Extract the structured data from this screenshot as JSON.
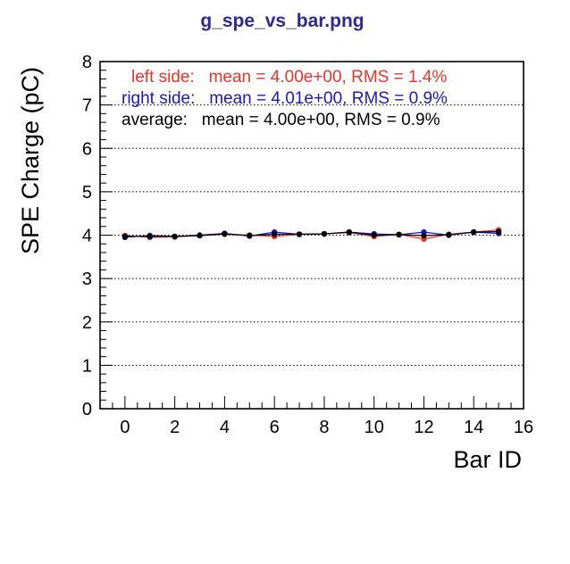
{
  "chart_data": {
    "type": "line",
    "title": "g_spe_vs_bar.png",
    "xlabel": "Bar ID",
    "ylabel": "SPE Charge (pC)",
    "xlim": [
      -1,
      16
    ],
    "ylim": [
      0,
      8
    ],
    "x_ticks": [
      "0",
      "2",
      "4",
      "6",
      "8",
      "10",
      "12",
      "14",
      "16"
    ],
    "y_ticks": [
      "0",
      "1",
      "2",
      "3",
      "4",
      "5",
      "6",
      "7",
      "8"
    ],
    "grid": "horizontal dotted",
    "legend_placement": "top",
    "x": [
      0,
      1,
      2,
      3,
      4,
      5,
      6,
      7,
      8,
      9,
      10,
      11,
      12,
      13,
      14,
      15
    ],
    "series": [
      {
        "color": "#e8342a",
        "values": [
          3.99,
          3.95,
          3.96,
          3.99,
          4.02,
          4.0,
          3.97,
          4.02,
          4.03,
          4.06,
          3.97,
          4.02,
          3.91,
          4.02,
          4.07,
          4.12
        ]
      },
      {
        "color": "#1b16c8",
        "values": [
          3.95,
          3.99,
          3.97,
          4.0,
          4.04,
          3.98,
          4.07,
          4.02,
          4.03,
          4.07,
          4.03,
          4.01,
          4.07,
          4.0,
          4.07,
          4.04
        ]
      },
      {
        "color": "#000000",
        "values": [
          3.97,
          3.97,
          3.97,
          3.99,
          4.03,
          3.99,
          4.02,
          4.02,
          4.03,
          4.07,
          4.0,
          4.01,
          3.99,
          4.01,
          4.07,
          4.08
        ]
      }
    ],
    "annotations": [
      {
        "text": "left side:   mean = 4.00e+00, RMS = 1.4%",
        "color": "#e8342a"
      },
      {
        "text": "right side:   mean = 4.01e+00, RMS = 0.9%",
        "color": "#1b16c8"
      },
      {
        "text": "average:   mean = 4.00e+00, RMS = 0.9%",
        "color": "#000000"
      }
    ]
  }
}
